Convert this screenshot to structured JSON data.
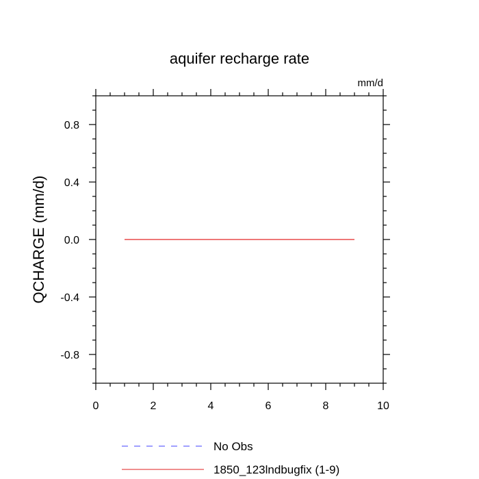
{
  "chart_data": {
    "type": "line",
    "title": "aquifer recharge rate",
    "units_label": "mm/d",
    "ylabel": "QCHARGE  (mm/d)",
    "xlabel": "",
    "xlim": [
      0,
      10
    ],
    "ylim": [
      -1,
      1
    ],
    "x_ticks": [
      0,
      2,
      4,
      6,
      8,
      10
    ],
    "x_tick_labels": [
      "0",
      "2",
      "4",
      "6",
      "8",
      "10"
    ],
    "y_ticks": [
      -0.8,
      -0.4,
      0.0,
      0.4,
      0.8
    ],
    "y_tick_labels": [
      "-0.8",
      "-0.4",
      "0.0",
      "0.4",
      "0.8"
    ],
    "grid": false,
    "legend_placement": "bottom",
    "series": [
      {
        "name": "No Obs",
        "color": "#6666ff",
        "dash": "dashed",
        "x": [],
        "values": []
      },
      {
        "name": "1850_123lndbugfix (1-9)",
        "color": "#e84a4a",
        "dash": "solid",
        "x": [
          1,
          2,
          3,
          4,
          5,
          6,
          7,
          8,
          9
        ],
        "values": [
          0,
          0,
          0,
          0,
          0,
          0,
          0,
          0,
          0
        ]
      }
    ]
  }
}
